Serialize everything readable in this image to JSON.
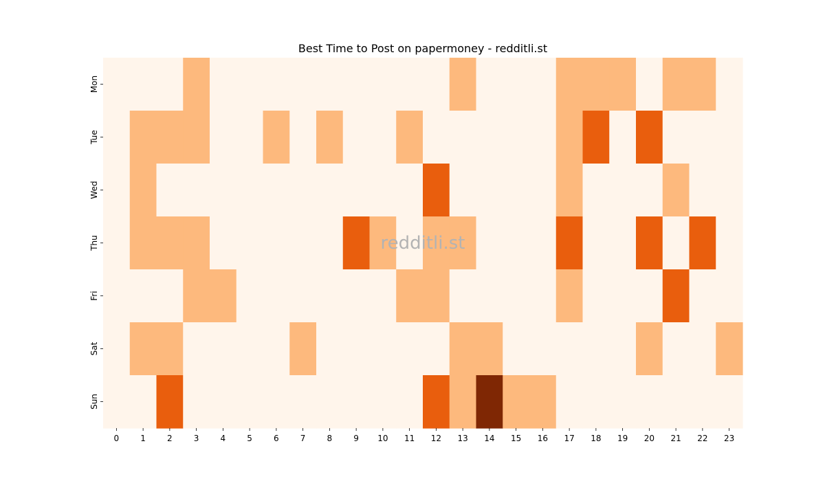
{
  "chart_data": {
    "type": "heatmap",
    "title": "Best Time to Post on papermoney - redditli.st",
    "watermark": "redditli.st",
    "xlabel": "",
    "ylabel": "",
    "x_categories": [
      "0",
      "1",
      "2",
      "3",
      "4",
      "5",
      "6",
      "7",
      "8",
      "9",
      "10",
      "11",
      "12",
      "13",
      "14",
      "15",
      "16",
      "17",
      "18",
      "19",
      "20",
      "21",
      "22",
      "23"
    ],
    "y_categories": [
      "Mon",
      "Tue",
      "Wed",
      "Thu",
      "Fri",
      "Sat",
      "Sun"
    ],
    "values": [
      [
        0,
        0,
        0,
        1,
        0,
        0,
        0,
        0,
        0,
        0,
        0,
        0,
        0,
        1,
        0,
        0,
        0,
        1,
        1,
        1,
        0,
        1,
        1,
        0
      ],
      [
        0,
        1,
        1,
        1,
        0,
        0,
        1,
        0,
        1,
        0,
        0,
        1,
        0,
        0,
        0,
        0,
        0,
        1,
        2,
        0,
        2,
        0,
        0,
        0
      ],
      [
        0,
        1,
        0,
        0,
        0,
        0,
        0,
        0,
        0,
        0,
        0,
        0,
        2,
        0,
        0,
        0,
        0,
        1,
        0,
        0,
        0,
        1,
        0,
        0
      ],
      [
        0,
        1,
        1,
        1,
        0,
        0,
        0,
        0,
        0,
        2,
        1,
        0,
        1,
        1,
        0,
        0,
        0,
        2,
        0,
        0,
        2,
        0,
        2,
        0
      ],
      [
        0,
        0,
        0,
        1,
        1,
        0,
        0,
        0,
        0,
        0,
        0,
        1,
        1,
        0,
        0,
        0,
        0,
        1,
        0,
        0,
        0,
        2,
        0,
        0
      ],
      [
        0,
        1,
        1,
        0,
        0,
        0,
        0,
        1,
        0,
        0,
        0,
        0,
        0,
        1,
        1,
        0,
        0,
        0,
        0,
        0,
        1,
        0,
        0,
        1
      ],
      [
        0,
        0,
        2,
        0,
        0,
        0,
        0,
        0,
        0,
        0,
        0,
        0,
        2,
        1,
        3,
        1,
        1,
        0,
        0,
        0,
        0,
        0,
        0,
        0
      ]
    ],
    "colormap": "Oranges",
    "level_colors": [
      "#fff5eb",
      "#fdb97d",
      "#e95e0d",
      "#7f2704"
    ],
    "colorbar": false,
    "grid": false
  }
}
